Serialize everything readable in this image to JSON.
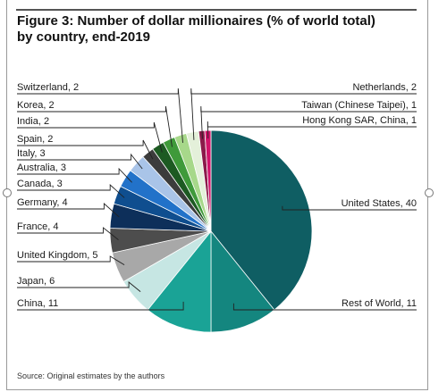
{
  "figure": {
    "title_line1": "Figure 3: Number of dollar millionaires (% of world total)",
    "title_line2": "by country, end-2019",
    "source": "Source: Original estimates by the authors"
  },
  "chart_data": {
    "type": "pie",
    "title": "Figure 3: Number of dollar millionaires (% of world total) by country, end-2019",
    "unit": "% of world total",
    "slices": [
      {
        "name": "United States",
        "label": "United States, 40",
        "value": 40,
        "color": "#0f5e63"
      },
      {
        "name": "Rest of World",
        "label": "Rest of World, 11",
        "value": 11,
        "color": "#14867f"
      },
      {
        "name": "China",
        "label": "China, 11",
        "value": 11,
        "color": "#1aa396"
      },
      {
        "name": "Japan",
        "label": "Japan, 6",
        "value": 6,
        "color": "#c6e6e3"
      },
      {
        "name": "United Kingdom",
        "label": "United Kingdom, 5",
        "value": 5,
        "color": "#a8a8a8"
      },
      {
        "name": "France",
        "label": "France, 4",
        "value": 4,
        "color": "#4d4d4d"
      },
      {
        "name": "Germany",
        "label": "Germany, 4",
        "value": 4,
        "color": "#0d2f5a"
      },
      {
        "name": "Canada",
        "label": "Canada, 3",
        "value": 3,
        "color": "#0f4e8f"
      },
      {
        "name": "Australia",
        "label": "Australia, 3",
        "value": 3,
        "color": "#2272c9"
      },
      {
        "name": "Italy",
        "label": "Italy, 3",
        "value": 3,
        "color": "#a9c4e8"
      },
      {
        "name": "Spain",
        "label": "Spain, 2",
        "value": 2,
        "color": "#3c3c3c"
      },
      {
        "name": "India",
        "label": "India, 2",
        "value": 2,
        "color": "#1d5a22"
      },
      {
        "name": "Korea",
        "label": "Korea, 2",
        "value": 2,
        "color": "#3f9a3a"
      },
      {
        "name": "Switzerland",
        "label": "Switzerland, 2",
        "value": 2,
        "color": "#a7d88a"
      },
      {
        "name": "Netherlands",
        "label": "Netherlands, 2",
        "value": 2,
        "color": "#e4f0da"
      },
      {
        "name": "Taiwan (Chinese Taipei)",
        "label": "Taiwan (Chinese Taipei), 1",
        "value": 1,
        "color": "#8b1a4a"
      },
      {
        "name": "Hong Kong SAR, China",
        "label": "Hong Kong SAR, China, 1",
        "value": 1,
        "color": "#d2136a"
      }
    ]
  }
}
